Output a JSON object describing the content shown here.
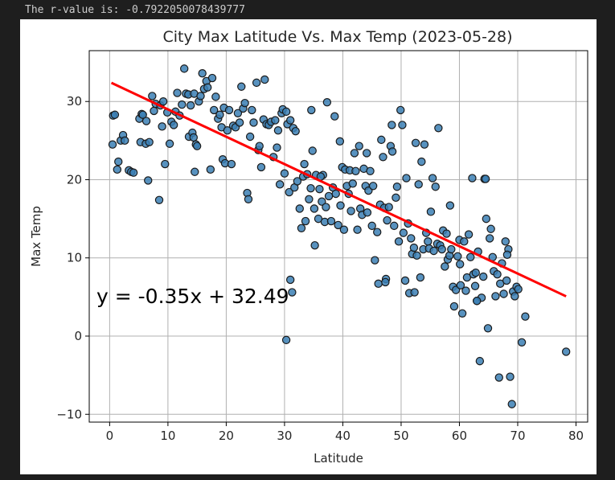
{
  "console": {
    "rvalue_text": "The r-value is: -0.7922050078439777"
  },
  "chart_data": {
    "type": "scatter",
    "title": "City Max Latitude Vs. Max Temp (2023-05-28)",
    "xlabel": "Latitude",
    "ylabel": "Max Temp",
    "xlim": [
      -3.5,
      82
    ],
    "ylim": [
      -11,
      36.5
    ],
    "xticks": [
      0,
      10,
      20,
      30,
      40,
      50,
      60,
      70,
      80
    ],
    "yticks": [
      -10,
      0,
      10,
      20,
      30
    ],
    "grid": true,
    "marker_color": "#3b7fb4",
    "marker_edge": "#1a1a1a",
    "regression": {
      "slope": -0.35,
      "intercept": 32.49,
      "x_range": [
        0.3,
        78.3
      ],
      "color": "#ff0000",
      "equation": "y = -0.35x + 32.49"
    },
    "points": [
      [
        0.5,
        24.5
      ],
      [
        0.6,
        28.2
      ],
      [
        0.9,
        28.3
      ],
      [
        1.3,
        21.3
      ],
      [
        1.5,
        22.3
      ],
      [
        1.9,
        25.0
      ],
      [
        2.3,
        25.7
      ],
      [
        2.6,
        25.0
      ],
      [
        3.3,
        21.2
      ],
      [
        3.7,
        21.0
      ],
      [
        4.1,
        20.9
      ],
      [
        5.1,
        27.8
      ],
      [
        5.3,
        24.8
      ],
      [
        5.5,
        28.4
      ],
      [
        5.7,
        28.3
      ],
      [
        6.2,
        24.6
      ],
      [
        6.3,
        27.5
      ],
      [
        6.6,
        19.9
      ],
      [
        6.8,
        24.8
      ],
      [
        7.3,
        30.7
      ],
      [
        7.6,
        28.8
      ],
      [
        7.9,
        29.7
      ],
      [
        8.5,
        17.4
      ],
      [
        8.7,
        29.5
      ],
      [
        9.0,
        26.8
      ],
      [
        9.2,
        30.0
      ],
      [
        9.5,
        22.0
      ],
      [
        9.9,
        28.6
      ],
      [
        10.3,
        24.6
      ],
      [
        10.6,
        27.4
      ],
      [
        11.0,
        27.0
      ],
      [
        11.3,
        28.7
      ],
      [
        11.6,
        31.1
      ],
      [
        12.0,
        28.2
      ],
      [
        12.4,
        29.6
      ],
      [
        12.8,
        34.2
      ],
      [
        13.1,
        31.0
      ],
      [
        13.5,
        30.9
      ],
      [
        13.6,
        25.5
      ],
      [
        13.9,
        29.5
      ],
      [
        14.2,
        26.0
      ],
      [
        14.4,
        25.4
      ],
      [
        14.5,
        31.0
      ],
      [
        14.6,
        21.0
      ],
      [
        14.8,
        24.5
      ],
      [
        15.0,
        24.3
      ],
      [
        15.3,
        30.0
      ],
      [
        15.6,
        30.7
      ],
      [
        15.9,
        33.6
      ],
      [
        16.2,
        31.6
      ],
      [
        16.6,
        32.6
      ],
      [
        16.8,
        31.8
      ],
      [
        17.3,
        21.3
      ],
      [
        17.6,
        33.0
      ],
      [
        17.9,
        28.9
      ],
      [
        18.2,
        30.6
      ],
      [
        18.6,
        27.8
      ],
      [
        18.9,
        28.3
      ],
      [
        19.2,
        26.7
      ],
      [
        19.4,
        22.6
      ],
      [
        19.6,
        29.2
      ],
      [
        19.8,
        22.1
      ],
      [
        20.2,
        26.3
      ],
      [
        20.5,
        28.9
      ],
      [
        20.9,
        22.0
      ],
      [
        21.2,
        26.9
      ],
      [
        21.6,
        26.7
      ],
      [
        22.0,
        28.5
      ],
      [
        22.3,
        27.3
      ],
      [
        22.6,
        31.9
      ],
      [
        22.9,
        29.1
      ],
      [
        23.2,
        29.8
      ],
      [
        23.6,
        18.3
      ],
      [
        23.8,
        17.5
      ],
      [
        24.1,
        25.5
      ],
      [
        24.4,
        28.9
      ],
      [
        24.7,
        27.3
      ],
      [
        25.2,
        32.4
      ],
      [
        25.5,
        23.8
      ],
      [
        25.7,
        24.3
      ],
      [
        26.0,
        21.6
      ],
      [
        26.4,
        27.7
      ],
      [
        26.6,
        32.8
      ],
      [
        26.9,
        27.1
      ],
      [
        27.3,
        27.0
      ],
      [
        27.7,
        27.4
      ],
      [
        28.1,
        22.9
      ],
      [
        28.4,
        27.6
      ],
      [
        28.7,
        24.1
      ],
      [
        28.9,
        26.3
      ],
      [
        29.2,
        19.4
      ],
      [
        29.5,
        28.5
      ],
      [
        29.7,
        29.0
      ],
      [
        30.0,
        20.8
      ],
      [
        30.3,
        28.7
      ],
      [
        30.5,
        27.1
      ],
      [
        30.8,
        18.4
      ],
      [
        31.0,
        27.6
      ],
      [
        31.3,
        5.6
      ],
      [
        31.5,
        26.6
      ],
      [
        31.7,
        19.0
      ],
      [
        31.9,
        26.2
      ],
      [
        32.2,
        19.8
      ],
      [
        32.6,
        16.3
      ],
      [
        32.9,
        13.8
      ],
      [
        33.2,
        20.4
      ],
      [
        33.4,
        22.0
      ],
      [
        33.6,
        14.7
      ],
      [
        33.9,
        20.7
      ],
      [
        34.2,
        17.5
      ],
      [
        34.6,
        28.9
      ],
      [
        34.8,
        23.7
      ],
      [
        35.1,
        16.3
      ],
      [
        35.2,
        11.6
      ],
      [
        35.4,
        20.6
      ],
      [
        35.8,
        15.0
      ],
      [
        36.0,
        18.8
      ],
      [
        36.4,
        17.2
      ],
      [
        36.6,
        20.6
      ],
      [
        36.9,
        14.6
      ],
      [
        37.1,
        16.5
      ],
      [
        37.3,
        29.9
      ],
      [
        37.6,
        17.9
      ],
      [
        38.0,
        14.7
      ],
      [
        38.3,
        19.0
      ],
      [
        38.6,
        28.1
      ],
      [
        38.8,
        18.2
      ],
      [
        39.2,
        14.2
      ],
      [
        39.5,
        24.9
      ],
      [
        39.6,
        16.7
      ],
      [
        39.9,
        21.6
      ],
      [
        40.2,
        13.6
      ],
      [
        40.4,
        21.3
      ],
      [
        40.7,
        19.2
      ],
      [
        41.0,
        18.2
      ],
      [
        41.2,
        21.2
      ],
      [
        41.4,
        16.0
      ],
      [
        41.7,
        19.5
      ],
      [
        42.0,
        23.4
      ],
      [
        42.2,
        21.1
      ],
      [
        42.5,
        13.6
      ],
      [
        42.8,
        24.3
      ],
      [
        43.0,
        16.3
      ],
      [
        43.3,
        15.5
      ],
      [
        43.6,
        21.4
      ],
      [
        43.9,
        19.2
      ],
      [
        44.1,
        23.4
      ],
      [
        44.4,
        18.6
      ],
      [
        44.7,
        21.1
      ],
      [
        45.0,
        14.1
      ],
      [
        45.2,
        19.2
      ],
      [
        45.5,
        9.7
      ],
      [
        45.9,
        13.3
      ],
      [
        46.1,
        6.7
      ],
      [
        46.4,
        16.8
      ],
      [
        46.6,
        25.1
      ],
      [
        46.9,
        22.9
      ],
      [
        47.1,
        16.4
      ],
      [
        47.4,
        7.3
      ],
      [
        47.6,
        14.8
      ],
      [
        47.9,
        16.5
      ],
      [
        48.2,
        24.3
      ],
      [
        48.4,
        27.0
      ],
      [
        48.5,
        23.6
      ],
      [
        48.8,
        14.1
      ],
      [
        49.1,
        17.7
      ],
      [
        49.3,
        19.1
      ],
      [
        49.6,
        12.1
      ],
      [
        49.9,
        28.9
      ],
      [
        50.2,
        27.0
      ],
      [
        50.4,
        13.2
      ],
      [
        50.7,
        7.1
      ],
      [
        50.9,
        20.2
      ],
      [
        51.2,
        14.4
      ],
      [
        51.4,
        5.5
      ],
      [
        51.7,
        12.5
      ],
      [
        51.9,
        10.5
      ],
      [
        52.2,
        11.3
      ],
      [
        52.5,
        24.7
      ],
      [
        52.7,
        10.3
      ],
      [
        53.0,
        19.4
      ],
      [
        53.3,
        7.5
      ],
      [
        53.5,
        22.3
      ],
      [
        53.8,
        11.1
      ],
      [
        54.0,
        24.5
      ],
      [
        54.3,
        13.2
      ],
      [
        54.6,
        12.1
      ],
      [
        54.8,
        11.2
      ],
      [
        55.1,
        15.9
      ],
      [
        55.4,
        20.2
      ],
      [
        55.6,
        10.9
      ],
      [
        55.9,
        19.1
      ],
      [
        56.2,
        11.8
      ],
      [
        56.4,
        26.6
      ],
      [
        56.7,
        11.6
      ],
      [
        57.0,
        11.1
      ],
      [
        57.2,
        13.5
      ],
      [
        57.5,
        8.9
      ],
      [
        57.8,
        13.1
      ],
      [
        58.0,
        9.8
      ],
      [
        58.3,
        10.3
      ],
      [
        58.6,
        11.1
      ],
      [
        58.9,
        6.3
      ],
      [
        59.1,
        3.8
      ],
      [
        59.4,
        5.9
      ],
      [
        59.7,
        10.2
      ],
      [
        60.0,
        12.3
      ],
      [
        60.2,
        6.5
      ],
      [
        60.5,
        2.9
      ],
      [
        60.8,
        12.1
      ],
      [
        61.1,
        5.8
      ],
      [
        61.3,
        7.5
      ],
      [
        61.6,
        13.0
      ],
      [
        61.9,
        10.1
      ],
      [
        62.2,
        20.2
      ],
      [
        62.4,
        7.9
      ],
      [
        62.7,
        6.4
      ],
      [
        63.0,
        4.5
      ],
      [
        63.2,
        10.8
      ],
      [
        63.5,
        -3.2
      ],
      [
        63.8,
        4.9
      ],
      [
        64.1,
        7.6
      ],
      [
        64.3,
        20.1
      ],
      [
        64.5,
        20.1
      ],
      [
        64.6,
        15.0
      ],
      [
        64.9,
        1.0
      ],
      [
        65.2,
        12.5
      ],
      [
        65.4,
        13.7
      ],
      [
        65.7,
        10.1
      ],
      [
        65.9,
        8.3
      ],
      [
        66.2,
        5.1
      ],
      [
        66.5,
        7.9
      ],
      [
        66.8,
        -5.3
      ],
      [
        67.0,
        6.7
      ],
      [
        67.3,
        9.3
      ],
      [
        67.6,
        5.4
      ],
      [
        67.9,
        12.1
      ],
      [
        68.1,
        7.1
      ],
      [
        68.4,
        11.1
      ],
      [
        68.7,
        -5.2
      ],
      [
        69.0,
        -8.7
      ],
      [
        69.2,
        5.7
      ],
      [
        69.5,
        5.1
      ],
      [
        69.8,
        6.3
      ],
      [
        70.1,
        6.0
      ],
      [
        70.7,
        -0.8
      ],
      [
        71.3,
        2.5
      ],
      [
        78.3,
        -2.0
      ],
      [
        30.3,
        -0.5
      ],
      [
        31.0,
        7.2
      ],
      [
        34.5,
        18.9
      ],
      [
        36.2,
        20.4
      ],
      [
        44.2,
        15.8
      ],
      [
        47.3,
        6.9
      ],
      [
        52.3,
        5.6
      ],
      [
        60.1,
        9.2
      ],
      [
        63.0,
        4.5
      ],
      [
        68.2,
        10.4
      ],
      [
        62.8,
        8.1
      ],
      [
        58.4,
        16.7
      ]
    ]
  }
}
